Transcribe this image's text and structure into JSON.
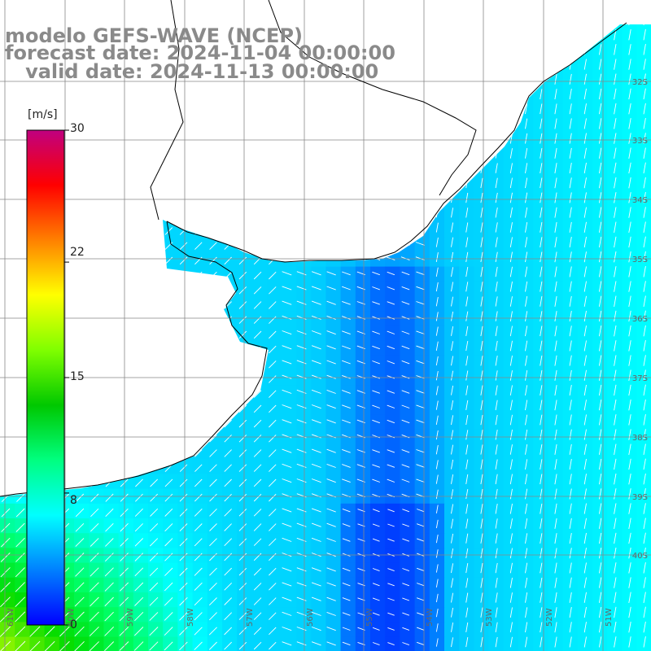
{
  "title": {
    "line1": "modelo GEFS-WAVE (NCEP)",
    "line2": "forecast date: 2024-11-04 00:00:00",
    "line3": "   valid date: 2024-11-13 00:00:00"
  },
  "colorbar": {
    "unit_label": "[m/s]",
    "ticks": [
      "30",
      "22",
      "15",
      "8",
      "0"
    ],
    "tick_values": [
      30,
      22,
      15,
      8,
      0
    ],
    "min": 0,
    "max": 30,
    "colors": [
      "#0000ff",
      "#0080ff",
      "#00ffff",
      "#00ff80",
      "#00c800",
      "#80ff00",
      "#ffff00",
      "#ff8000",
      "#ff0000",
      "#c00080"
    ]
  },
  "map": {
    "lat_labels": [
      "32S",
      "33S",
      "34S",
      "35S",
      "36S",
      "37S",
      "38S",
      "39S",
      "40S"
    ],
    "lon_labels": [
      "61W",
      "60W",
      "59W",
      "58W",
      "57W",
      "56W",
      "55W",
      "54W",
      "53W",
      "52W",
      "51W"
    ],
    "land_color": "#ffffff",
    "grid_color": "#888888"
  },
  "chart_data": {
    "type": "heatmap",
    "title": "modelo GEFS-WAVE (NCEP)",
    "variable_unit": "m/s",
    "value_range": [
      0,
      30
    ],
    "lon_range": [
      -61.5,
      -50.5
    ],
    "lat_range": [
      -31.2,
      -40.9
    ],
    "notes": "wind speed with direction arrows"
  }
}
